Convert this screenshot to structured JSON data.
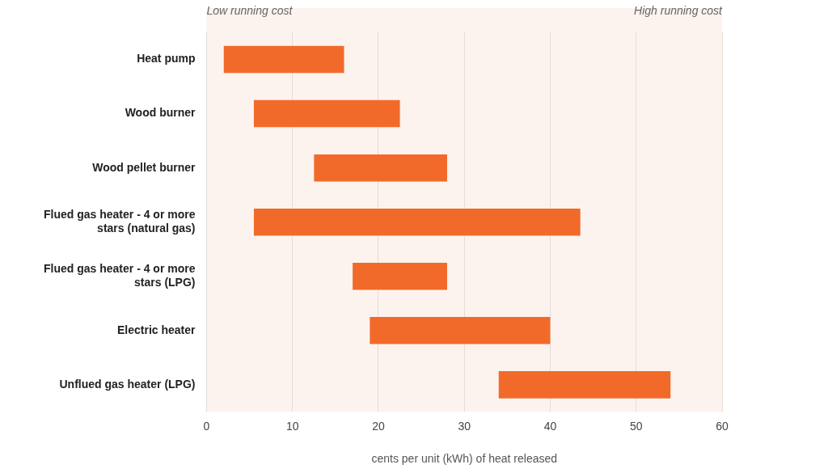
{
  "chart_data": {
    "type": "bar",
    "orientation": "horizontal",
    "annotations": [
      "Low running cost",
      "High running cost"
    ],
    "x_label": "cents per unit (kWh) of heat released",
    "categories": [
      "Heat pump",
      "Wood burner",
      "Wood pellet burner",
      "Flued gas heater - 4 or more stars (natural gas)",
      "Flued gas heater - 4 or more stars (LPG)",
      "Electric heater",
      "Unflued gas heater (LPG)"
    ],
    "values": [
      [
        2,
        16
      ],
      [
        5.5,
        22.5
      ],
      [
        12.5,
        28
      ],
      [
        5.5,
        43.5
      ],
      [
        17,
        28
      ],
      [
        19,
        40
      ],
      [
        34,
        54
      ]
    ],
    "color": "#f26a2a",
    "xlim": [
      0,
      60
    ],
    "xticks": [
      0,
      10,
      20,
      30,
      40,
      50,
      60
    ],
    "grid": true
  }
}
